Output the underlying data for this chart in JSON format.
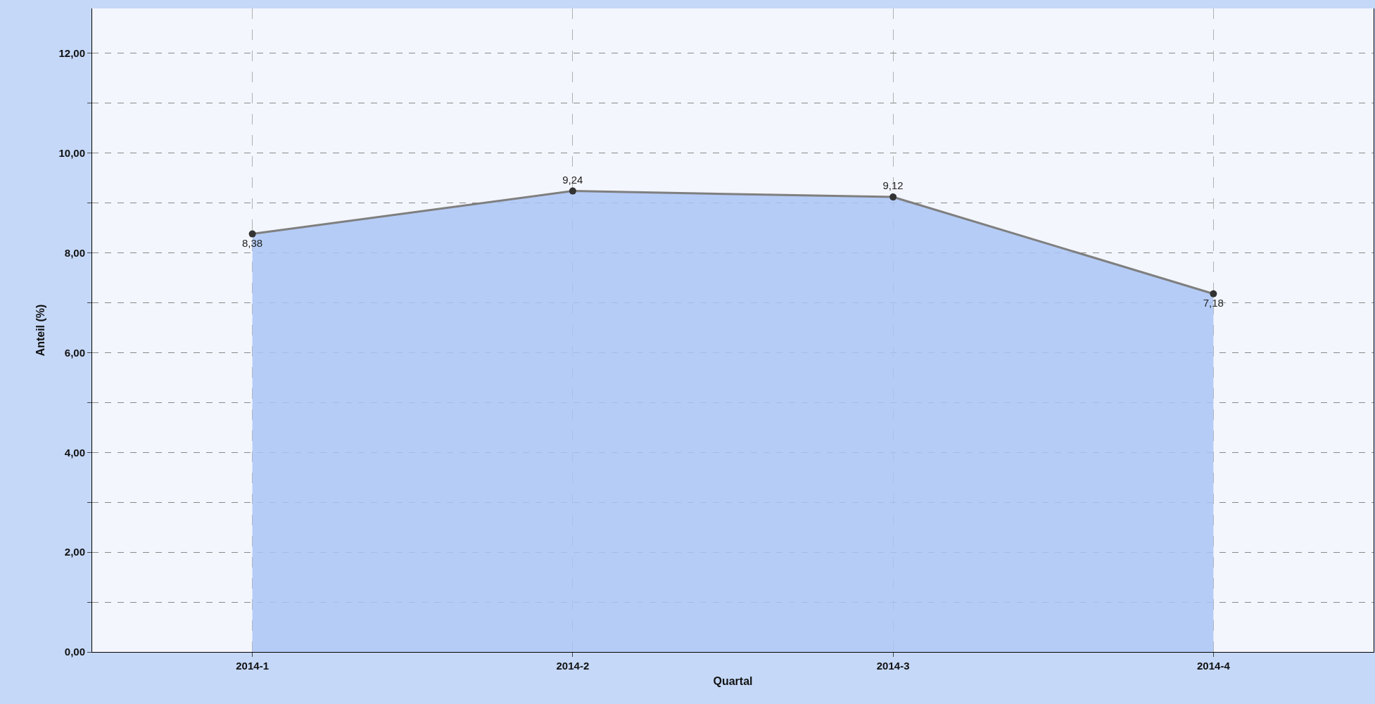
{
  "chart_data": {
    "type": "area",
    "xlabel": "Quartal",
    "ylabel": "Anteil (%)",
    "categories": [
      "2014-1",
      "2014-2",
      "2014-3",
      "2014-4"
    ],
    "series": [
      {
        "color": "#7f7f7f",
        "values": [
          8.38,
          9.24,
          9.12,
          7.18
        ],
        "value_labels": [
          "8,38",
          "9,24",
          "9,12",
          "7,18"
        ]
      }
    ],
    "ylim": [
      0,
      12.9
    ],
    "yticks": [
      {
        "value": 0,
        "label": "0,00"
      },
      {
        "value": 1,
        "label": null
      },
      {
        "value": 2,
        "label": "2,00"
      },
      {
        "value": 3,
        "label": null
      },
      {
        "value": 4,
        "label": "4,00"
      },
      {
        "value": 5,
        "label": null
      },
      {
        "value": 6,
        "label": "6,00"
      },
      {
        "value": 7,
        "label": null
      },
      {
        "value": 8,
        "label": "8,00"
      },
      {
        "value": 9,
        "label": null
      },
      {
        "value": 10,
        "label": "10,00"
      },
      {
        "value": 11,
        "label": null
      },
      {
        "value": 12,
        "label": "12,00"
      }
    ],
    "grid": true,
    "marker": "circle",
    "legend": false
  }
}
